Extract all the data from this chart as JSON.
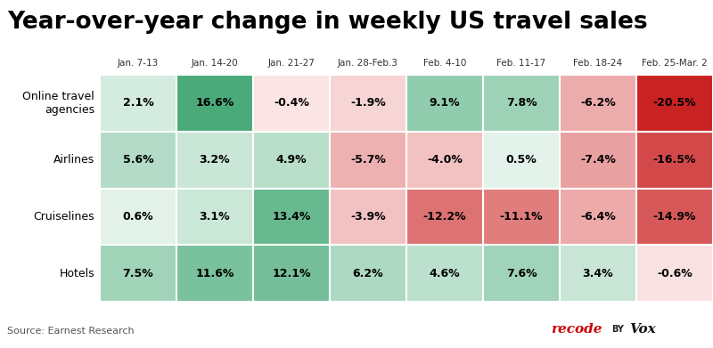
{
  "title": "Year-over-year change in weekly US travel sales",
  "columns": [
    "Jan. 7-13",
    "Jan. 14-20",
    "Jan. 21-27",
    "Jan. 28-Feb.3",
    "Feb. 4-10",
    "Feb. 11-17",
    "Feb. 18-24",
    "Feb. 25-Mar. 2"
  ],
  "rows": [
    "Online travel\nagencies",
    "Airlines",
    "Cruiselines",
    "Hotels"
  ],
  "values": [
    [
      2.1,
      16.6,
      -0.4,
      -1.9,
      9.1,
      7.8,
      -6.2,
      -20.5
    ],
    [
      5.6,
      3.2,
      4.9,
      -5.7,
      -4.0,
      0.5,
      -7.4,
      -16.5
    ],
    [
      0.6,
      3.1,
      13.4,
      -3.9,
      -12.2,
      -11.1,
      -6.4,
      -14.9
    ],
    [
      7.5,
      11.6,
      12.1,
      6.2,
      4.6,
      7.6,
      3.4,
      -0.6
    ]
  ],
  "labels": [
    [
      "2.1%",
      "16.6%",
      "-0.4%",
      "-1.9%",
      "9.1%",
      "7.8%",
      "-6.2%",
      "-20.5%"
    ],
    [
      "5.6%",
      "3.2%",
      "4.9%",
      "-5.7%",
      "-4.0%",
      "0.5%",
      "-7.4%",
      "-16.5%"
    ],
    [
      "0.6%",
      "3.1%",
      "13.4%",
      "-3.9%",
      "-12.2%",
      "-11.1%",
      "-6.4%",
      "-14.9%"
    ],
    [
      "7.5%",
      "11.6%",
      "12.1%",
      "6.2%",
      "4.6%",
      "7.6%",
      "3.4%",
      "-0.6%"
    ]
  ],
  "source": "Source: Earnest Research",
  "source_color": "#555555",
  "title_fontsize": 19,
  "col_fontsize": 7.5,
  "cell_fontsize": 9,
  "row_fontsize": 9,
  "background_color": "#ffffff",
  "grid_color": "#ffffff",
  "vmin": -21,
  "vmax": 17
}
